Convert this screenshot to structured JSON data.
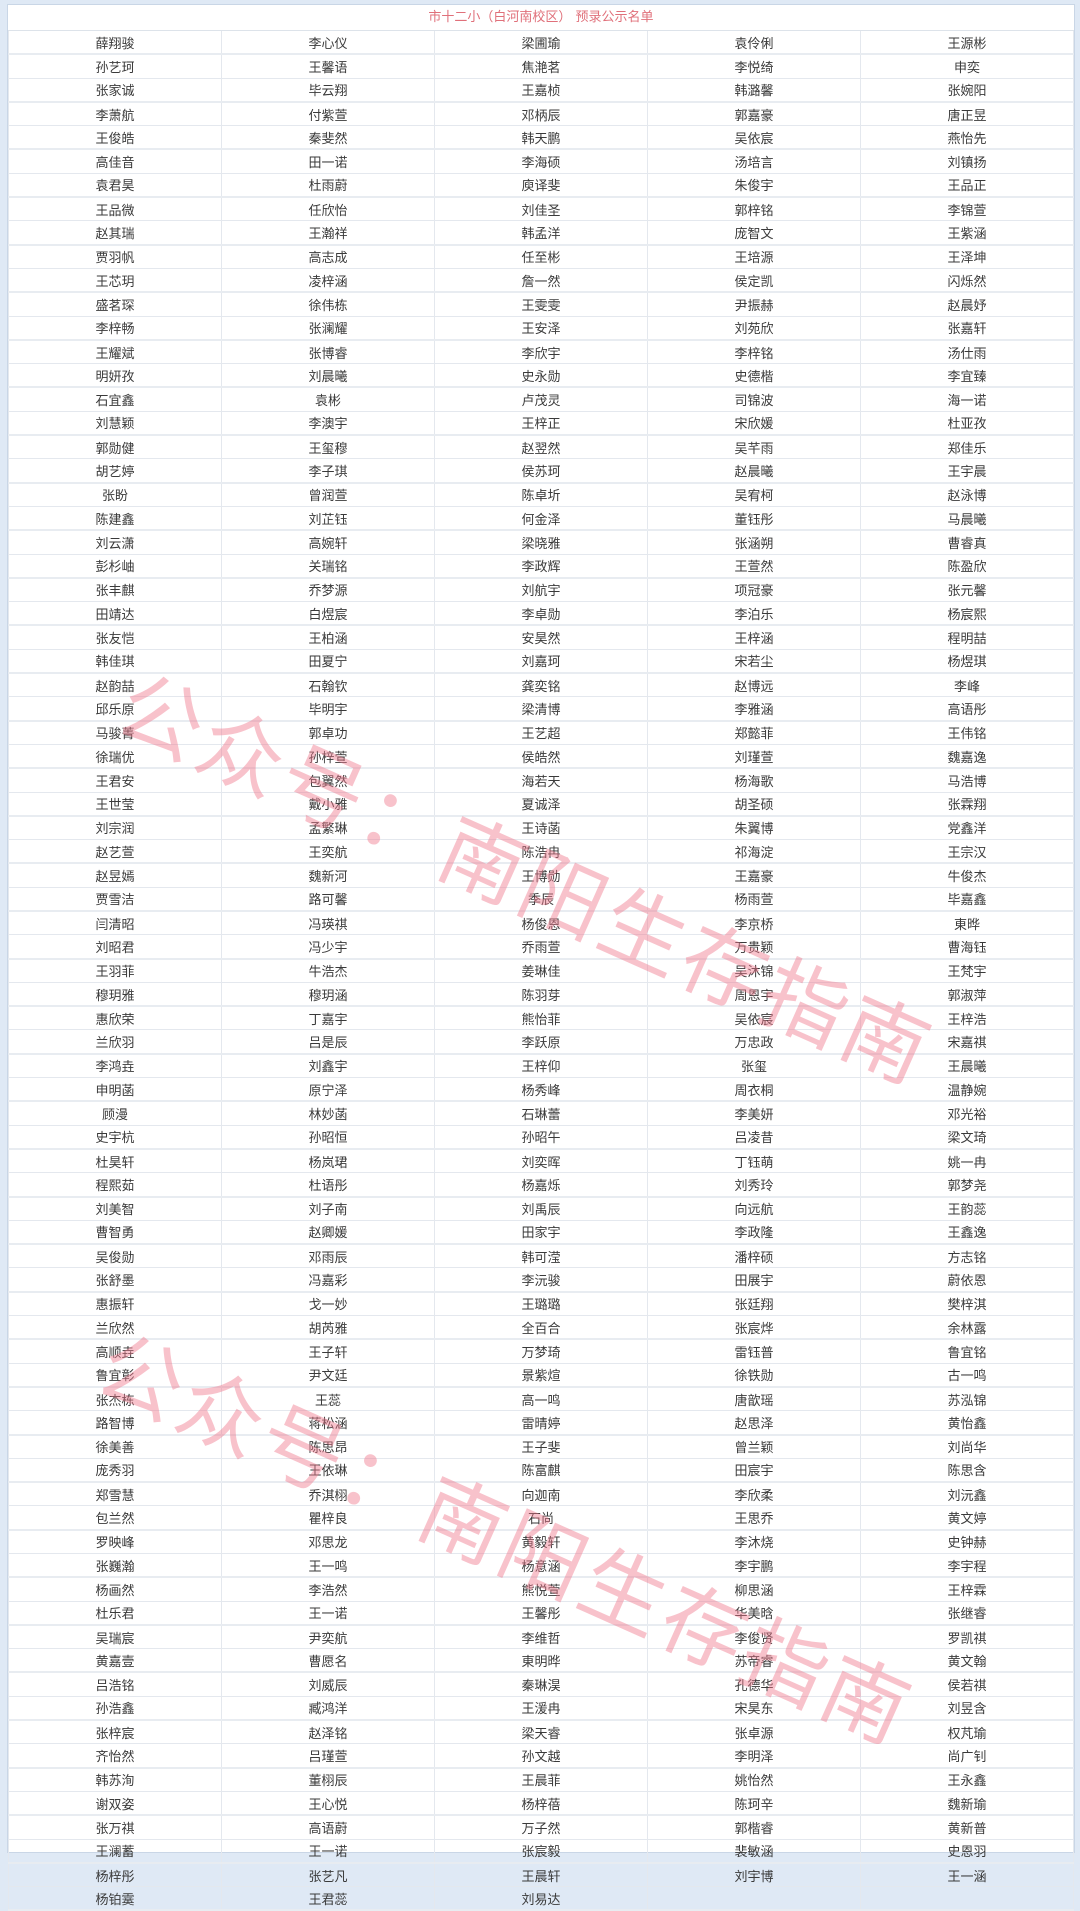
{
  "title": "市十二小（白河南校区） 预录公示名单",
  "watermark": "公众号：南阳生存指南",
  "rows": [
    [
      "薛翔骏",
      "李心仪",
      "梁圃瑜",
      "袁伶俐",
      "王源彬"
    ],
    [
      "孙艺珂",
      "王馨语",
      "焦滟茗",
      "李悦绮",
      "申奕"
    ],
    [
      "张家诚",
      "毕云翔",
      "王嘉桢",
      "韩潞馨",
      "张婉阳"
    ],
    [
      "李萧航",
      "付紫萱",
      "邓柄辰",
      "郭嘉豪",
      "唐正昱"
    ],
    [
      "王俊皓",
      "秦斐然",
      "韩天鹏",
      "吴依宸",
      "燕怡先"
    ],
    [
      "高佳音",
      "田一诺",
      "李海硕",
      "汤培言",
      "刘镇扬"
    ],
    [
      "袁君昊",
      "杜雨蔚",
      "庾译斐",
      "朱俊宇",
      "王品正"
    ],
    [
      "王品微",
      "任欣怡",
      "刘佳圣",
      "郭梓铭",
      "李锦萱"
    ],
    [
      "赵其瑞",
      "王瀚祥",
      "韩孟洋",
      "庞智文",
      "王紫涵"
    ],
    [
      "贾羽帆",
      "高志成",
      "任至彬",
      "王培源",
      "王泽坤"
    ],
    [
      "王芯玥",
      "凌梓涵",
      "詹一然",
      "侯定凯",
      "闪烁然"
    ],
    [
      "盛茗琛",
      "徐伟栋",
      "王雯雯",
      "尹振赫",
      "赵晨妤"
    ],
    [
      "李梓畅",
      "张澜耀",
      "王安泽",
      "刘苑欣",
      "张嘉轩"
    ],
    [
      "王耀斌",
      "张博睿",
      "李欣宇",
      "李梓铭",
      "汤仕雨"
    ],
    [
      "明妍孜",
      "刘晨曦",
      "史永勋",
      "史德楷",
      "李宜臻"
    ],
    [
      "石宜鑫",
      "袁彬",
      "卢茂灵",
      "司锦波",
      "海一诺"
    ],
    [
      "刘慧颖",
      "李澳宇",
      "王梓正",
      "宋欣媛",
      "杜亚孜"
    ],
    [
      "郭勋健",
      "王玺穆",
      "赵翌然",
      "吴芊雨",
      "郑佳乐"
    ],
    [
      "胡艺婷",
      "李子琪",
      "侯苏珂",
      "赵晨曦",
      "王宇晨"
    ],
    [
      "张盼",
      "曾润萱",
      "陈卓圻",
      "吴宥柯",
      "赵泳博"
    ],
    [
      "陈建鑫",
      "刘芷钰",
      "何金泽",
      "董钰彤",
      "马晨曦"
    ],
    [
      "刘云潇",
      "高婉轩",
      "梁晓雅",
      "张涵朔",
      "曹睿真"
    ],
    [
      "彭杉岫",
      "关瑞铭",
      "李政辉",
      "王萱然",
      "陈盈欣"
    ],
    [
      "张丰麒",
      "乔梦源",
      "刘航宇",
      "项冠豪",
      "张元馨"
    ],
    [
      "田靖达",
      "白煜宸",
      "李卓勋",
      "李泊乐",
      "杨宸熙"
    ],
    [
      "张友恺",
      "王柏涵",
      "安昊然",
      "王梓涵",
      "程明喆"
    ],
    [
      "韩佳琪",
      "田夏宁",
      "刘嘉珂",
      "宋若尘",
      "杨煜琪"
    ],
    [
      "赵韵喆",
      "石翰钦",
      "龚奕铭",
      "赵博远",
      "李峰"
    ],
    [
      "邱乐原",
      "毕明宇",
      "梁清博",
      "李雅涵",
      "高语彤"
    ],
    [
      "马骏菁",
      "郭卓功",
      "王艺超",
      "郑懿菲",
      "王伟铭"
    ],
    [
      "徐瑞优",
      "孙梓萱",
      "侯皓然",
      "刘瑾萱",
      "魏嘉逸"
    ],
    [
      "王君安",
      "包翼然",
      "海若天",
      "杨海歌",
      "马浩博"
    ],
    [
      "王世莹",
      "戴小雅",
      "夏诚泽",
      "胡圣硕",
      "张霖翔"
    ],
    [
      "刘宗润",
      "孟繁琳",
      "王诗菡",
      "朱翼博",
      "党鑫洋"
    ],
    [
      "赵艺萱",
      "王奕航",
      "陈浩冉",
      "祁海淀",
      "王宗汉"
    ],
    [
      "赵昱嫣",
      "魏新河",
      "王博勋",
      "王嘉豪",
      "牛俊杰"
    ],
    [
      "贾雪洁",
      "路可馨",
      "季辰",
      "杨雨萱",
      "毕嘉鑫"
    ],
    [
      "闫清昭",
      "冯瑛祺",
      "杨俊恩",
      "李京桥",
      "東晔"
    ],
    [
      "刘昭君",
      "冯少宇",
      "乔雨萱",
      "万贵颖",
      "曹海钰"
    ],
    [
      "王羽菲",
      "牛浩杰",
      "姜琳佳",
      "吴沐锦",
      "王梵宇"
    ],
    [
      "穆玥雅",
      "穆玥涵",
      "陈羽芽",
      "周恩宇",
      "郭淑萍"
    ],
    [
      "惠欣荣",
      "丁嘉宇",
      "熊怡菲",
      "吴依宸",
      "王梓浩"
    ],
    [
      "兰欣羽",
      "吕是辰",
      "李跃原",
      "万忠政",
      "宋嘉祺"
    ],
    [
      "李鸿垚",
      "刘鑫宇",
      "王梓仰",
      "张玺",
      "王晨曦"
    ],
    [
      "申明菡",
      "原宁泽",
      "杨秀峰",
      "周衣桐",
      "温静婉"
    ],
    [
      "顾漫",
      "林妙菡",
      "石琳蕾",
      "李美妍",
      "邓光裕"
    ],
    [
      "史宇杭",
      "孙昭恒",
      "孙昭午",
      "吕凌昔",
      "梁文琦"
    ],
    [
      "杜昊轩",
      "杨岚珺",
      "刘奕晖",
      "丁钰萌",
      "姚一冉"
    ],
    [
      "程熙茹",
      "杜语彤",
      "杨嘉烁",
      "刘秀玲",
      "郭梦尧"
    ],
    [
      "刘美智",
      "刘子南",
      "刘禹辰",
      "向远航",
      "王韵蕊"
    ],
    [
      "曹智勇",
      "赵卿媛",
      "田家宇",
      "李政隆",
      "王鑫逸"
    ],
    [
      "吴俊勋",
      "邓雨辰",
      "韩可滢",
      "潘梓硕",
      "方志铭"
    ],
    [
      "张舒墨",
      "冯嘉彩",
      "李沅骏",
      "田展宇",
      "蔚依恩"
    ],
    [
      "惠振轩",
      "戈一妙",
      "王璐璐",
      "张廷翔",
      "樊梓淇"
    ],
    [
      "兰欣然",
      "胡芮雅",
      "全百合",
      "张宸烨",
      "余林露"
    ],
    [
      "高顺垚",
      "王子轩",
      "万梦琦",
      "雷钰普",
      "鲁宜铭"
    ],
    [
      "鲁宜彰",
      "尹文廷",
      "景紫煊",
      "徐铁勋",
      "古一鸣"
    ],
    [
      "张杰栋",
      "王蕊",
      "高一鸣",
      "唐歆瑶",
      "苏泓锦"
    ],
    [
      "路智博",
      "蒋松涵",
      "雷晴婷",
      "赵思泽",
      "黄怡鑫"
    ],
    [
      "徐美善",
      "陈思昂",
      "王子斐",
      "曾兰颖",
      "刘尚华"
    ],
    [
      "庞秀羽",
      "王依琳",
      "陈富麒",
      "田宸宇",
      "陈思含"
    ],
    [
      "郑雪慧",
      "乔淇栩",
      "向迦南",
      "李欣柔",
      "刘沅鑫"
    ],
    [
      "包兰然",
      "瞿梓良",
      "石尚",
      "王思乔",
      "黄文婷"
    ],
    [
      "罗映峰",
      "邓思龙",
      "黄毅轩",
      "李沐烧",
      "史钟赫"
    ],
    [
      "张巍瀚",
      "王一鸣",
      "杨意涵",
      "李宇鹏",
      "李宇程"
    ],
    [
      "杨画然",
      "李浩然",
      "熊悦萱",
      "柳思涵",
      "王梓霖"
    ],
    [
      "杜乐君",
      "王一诺",
      "王馨彤",
      "华美晗",
      "张继睿"
    ],
    [
      "吴瑞宸",
      "尹奕航",
      "李维哲",
      "李俊贤",
      "罗凯祺"
    ],
    [
      "黄嘉壹",
      "曹愿名",
      "東明晔",
      "苏帝睿",
      "黄文翰"
    ],
    [
      "吕浩铭",
      "刘威辰",
      "秦琳淏",
      "孔德华",
      "侯若祺"
    ],
    [
      "孙浩鑫",
      "臧鸿洋",
      "王湲冉",
      "宋昊东",
      "刘昱含"
    ],
    [
      "张梓宸",
      "赵泽铭",
      "梁天睿",
      "张卓源",
      "权芃瑜"
    ],
    [
      "齐怡然",
      "吕瑾萱",
      "孙文越",
      "李明泽",
      "尚广钊"
    ],
    [
      "韩苏洵",
      "董栩辰",
      "王晨菲",
      "姚怡然",
      "王永鑫"
    ],
    [
      "谢双姿",
      "王心悦",
      "杨梓蓓",
      "陈珂辛",
      "魏新瑜"
    ],
    [
      "张万祺",
      "高语蔚",
      "万子然",
      "郭楷睿",
      "黄新普"
    ],
    [
      "王澜蓄",
      "王一诺",
      "张宸毅",
      "裴敏涵",
      "史恩羽"
    ],
    [
      "杨梓彤",
      "张艺凡",
      "王晨轩",
      "刘宇博",
      "王一涵"
    ],
    [
      "杨铂霙",
      "王君蕊",
      "刘易达",
      "",
      ""
    ]
  ]
}
